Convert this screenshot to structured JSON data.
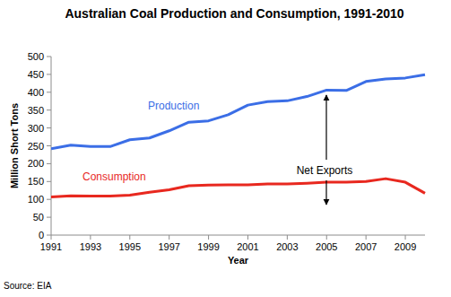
{
  "chart_data": {
    "type": "line",
    "title": "Australian Coal Production and Consumption, 1991-2010",
    "x_label": "Year",
    "y_label": "Million Short Tons",
    "annotation": "Net Exports",
    "source": "Source: EIA",
    "x": [
      1991,
      1992,
      1993,
      1994,
      1995,
      1996,
      1997,
      1998,
      1999,
      2000,
      2001,
      2002,
      2003,
      2004,
      2005,
      2006,
      2007,
      2008,
      2009,
      2010
    ],
    "series": [
      {
        "name": "Production",
        "color": "#3b6ee6",
        "values": [
          242,
          252,
          248,
          248,
          267,
          272,
          292,
          316,
          320,
          337,
          364,
          374,
          376,
          388,
          406,
          405,
          430,
          437,
          440,
          449
        ]
      },
      {
        "name": "Consumption",
        "color": "#e8281f",
        "values": [
          107,
          110,
          109,
          109,
          112,
          120,
          127,
          138,
          140,
          141,
          141,
          143,
          143,
          145,
          148,
          148,
          150,
          158,
          148,
          117
        ]
      }
    ],
    "xlim": [
      1991,
      2010
    ],
    "xticks": [
      1991,
      1993,
      1995,
      1997,
      1999,
      2001,
      2003,
      2005,
      2007,
      2009
    ],
    "ylim": [
      0,
      500
    ],
    "yticks": [
      0,
      50,
      100,
      150,
      200,
      250,
      300,
      350,
      400,
      450,
      500
    ],
    "grid": false
  }
}
